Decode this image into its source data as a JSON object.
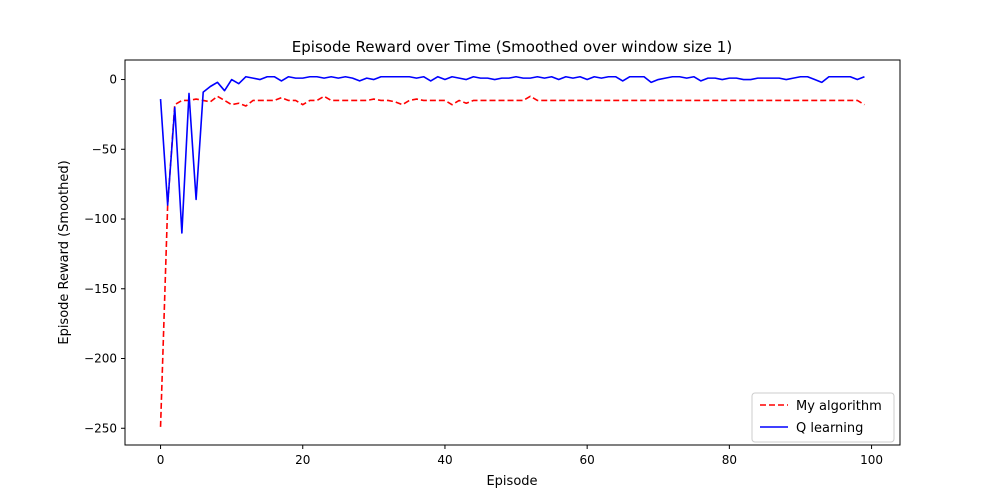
{
  "chart_data": {
    "type": "line",
    "title": "Episode Reward over Time (Smoothed over window size 1)",
    "xlabel": "Episode",
    "ylabel": "Episode Reward (Smoothed)",
    "xlim": [
      -5,
      104
    ],
    "ylim": [
      -262,
      14
    ],
    "xticks": [
      0,
      20,
      40,
      60,
      80,
      100
    ],
    "yticks": [
      0,
      -50,
      -100,
      -150,
      -200,
      -250
    ],
    "xtick_labels": [
      "0",
      "20",
      "40",
      "60",
      "80",
      "100"
    ],
    "ytick_labels": [
      "0",
      "−50",
      "−100",
      "−150",
      "−200",
      "−250"
    ],
    "legend_position": "lower-right",
    "grid": false,
    "series": [
      {
        "name": "My algorithm",
        "color": "#ff0000",
        "style": "dashed",
        "x": [
          0,
          1,
          2,
          3,
          4,
          5,
          6,
          7,
          8,
          9,
          10,
          11,
          12,
          13,
          14,
          15,
          16,
          17,
          18,
          19,
          20,
          21,
          22,
          23,
          24,
          25,
          26,
          27,
          28,
          29,
          30,
          31,
          32,
          33,
          34,
          35,
          36,
          37,
          38,
          39,
          40,
          41,
          42,
          43,
          44,
          45,
          46,
          47,
          48,
          49,
          50,
          51,
          52,
          53,
          54,
          55,
          56,
          57,
          58,
          59,
          60,
          61,
          62,
          63,
          64,
          65,
          66,
          67,
          68,
          69,
          70,
          71,
          72,
          73,
          74,
          75,
          76,
          77,
          78,
          79,
          80,
          81,
          82,
          83,
          84,
          85,
          86,
          87,
          88,
          89,
          90,
          91,
          92,
          93,
          94,
          95,
          96,
          97,
          98,
          99
        ],
        "y": [
          -249,
          -90,
          -18,
          -15,
          -15,
          -14,
          -15,
          -16,
          -12,
          -15,
          -18,
          -17,
          -19,
          -15,
          -15,
          -15,
          -15,
          -13,
          -15,
          -15,
          -18,
          -15,
          -15,
          -12,
          -15,
          -15,
          -15,
          -15,
          -15,
          -15,
          -14,
          -15,
          -15,
          -16,
          -18,
          -15,
          -14,
          -15,
          -15,
          -15,
          -15,
          -18,
          -15,
          -17,
          -15,
          -15,
          -15,
          -15,
          -15,
          -15,
          -15,
          -15,
          -12,
          -15,
          -15,
          -15,
          -15,
          -15,
          -15,
          -15,
          -15,
          -15,
          -15,
          -15,
          -15,
          -15,
          -15,
          -15,
          -15,
          -15,
          -15,
          -15,
          -15,
          -15,
          -15,
          -15,
          -15,
          -15,
          -15,
          -15,
          -15,
          -15,
          -15,
          -15,
          -15,
          -15,
          -15,
          -15,
          -15,
          -15,
          -15,
          -15,
          -15,
          -15,
          -15,
          -15,
          -15,
          -15,
          -15,
          -18
        ]
      },
      {
        "name": "Q learning",
        "color": "#0000ff",
        "style": "solid",
        "x": [
          0,
          1,
          2,
          3,
          4,
          5,
          6,
          7,
          8,
          9,
          10,
          11,
          12,
          13,
          14,
          15,
          16,
          17,
          18,
          19,
          20,
          21,
          22,
          23,
          24,
          25,
          26,
          27,
          28,
          29,
          30,
          31,
          32,
          33,
          34,
          35,
          36,
          37,
          38,
          39,
          40,
          41,
          42,
          43,
          44,
          45,
          46,
          47,
          48,
          49,
          50,
          51,
          52,
          53,
          54,
          55,
          56,
          57,
          58,
          59,
          60,
          61,
          62,
          63,
          64,
          65,
          66,
          67,
          68,
          69,
          70,
          71,
          72,
          73,
          74,
          75,
          76,
          77,
          78,
          79,
          80,
          81,
          82,
          83,
          84,
          85,
          86,
          87,
          88,
          89,
          90,
          91,
          92,
          93,
          94,
          95,
          96,
          97,
          98,
          99
        ],
        "y": [
          -14,
          -90,
          -20,
          -110,
          -10,
          -86,
          -9,
          -5,
          -2,
          -8,
          0,
          -3,
          2,
          1,
          0,
          2,
          2,
          -1,
          2,
          1,
          1,
          2,
          2,
          1,
          2,
          1,
          2,
          1,
          -1,
          1,
          0,
          2,
          2,
          2,
          2,
          2,
          1,
          2,
          -1,
          2,
          0,
          2,
          1,
          0,
          2,
          1,
          1,
          0,
          1,
          1,
          2,
          1,
          1,
          2,
          1,
          2,
          0,
          2,
          1,
          2,
          0,
          2,
          1,
          2,
          2,
          -1,
          2,
          2,
          2,
          -2,
          0,
          1,
          2,
          2,
          1,
          2,
          -1,
          1,
          1,
          0,
          1,
          1,
          0,
          0,
          1,
          1,
          1,
          1,
          0,
          1,
          2,
          2,
          0,
          -2,
          2,
          2,
          2,
          2,
          0,
          2
        ]
      }
    ]
  }
}
